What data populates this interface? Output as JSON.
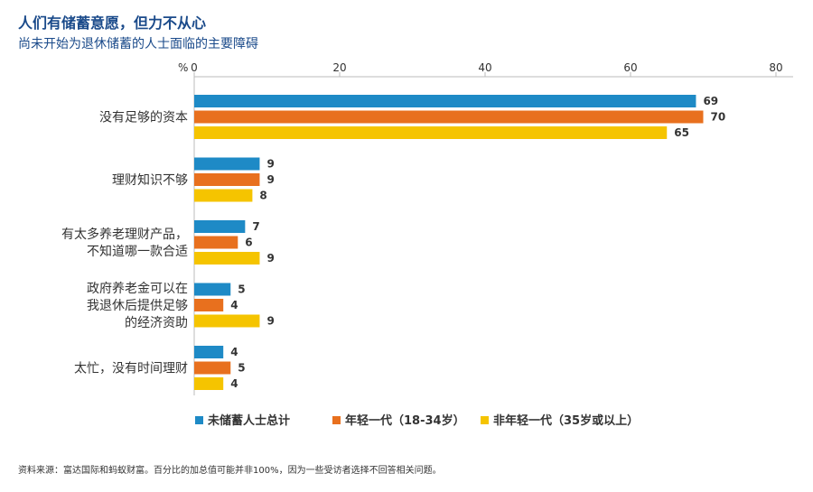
{
  "header": {
    "title": "人们有储蓄意愿，但力不从心",
    "subtitle": "尚未开始为退休储蓄的人士面临的主要障碍"
  },
  "footer": {
    "source": "资料来源：富达国际和蚂蚁财富。百分比的加总值可能并非100%，因为一些受访者选择不回答相关问题。"
  },
  "chart_data": {
    "type": "bar",
    "orientation": "horizontal",
    "axis_unit": "%",
    "xlim": [
      0,
      80
    ],
    "ticks": [
      0,
      20,
      40,
      60,
      80
    ],
    "categories": [
      [
        "没有足够的资本"
      ],
      [
        "理财知识不够"
      ],
      [
        "有太多养老理财产品，",
        "不知道哪一款合适"
      ],
      [
        "政府养老金可以在",
        "我退休后提供足够",
        "的经济资助"
      ],
      [
        "太忙，没有时间理财"
      ]
    ],
    "series": [
      {
        "name": "未储蓄人士总计",
        "color": "#1e8ac6",
        "values": [
          69,
          9,
          7,
          5,
          4
        ]
      },
      {
        "name": "年轻一代（18-34岁）",
        "color": "#e8701e",
        "values": [
          70,
          9,
          6,
          4,
          5
        ]
      },
      {
        "name": "非年轻一代（35岁或以上）",
        "color": "#f5c400",
        "values": [
          65,
          8,
          9,
          9,
          4
        ]
      }
    ],
    "legend_position": "bottom",
    "grid": false
  }
}
